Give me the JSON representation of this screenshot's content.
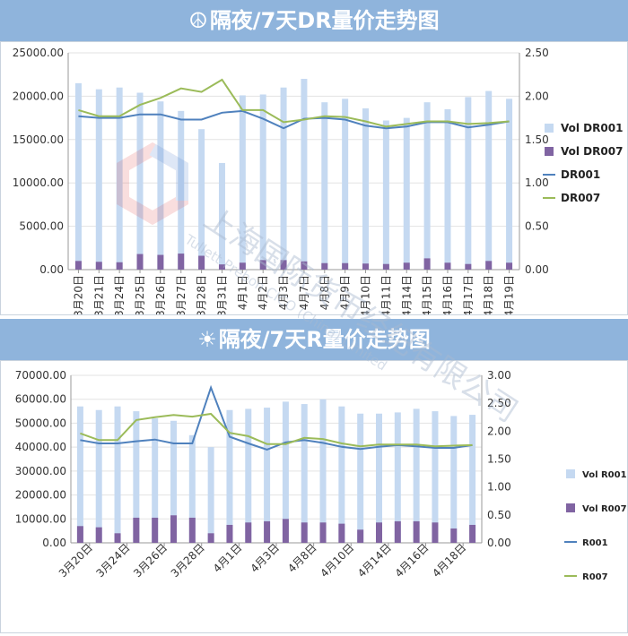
{
  "top": {
    "icon": "☮",
    "title": "隔夜/7天DR量价走势图"
  },
  "bottom": {
    "icon": "☀",
    "title": "隔夜/7天R量价走势图"
  },
  "watermark": {
    "line1": "上海国际货币经纪有限公司",
    "line2": "Tullett Prebon CICO (China) Limited"
  },
  "colors": {
    "vol_main": "#c5d9f1",
    "vol_7d": "#8064a2",
    "line_1d": "#4f81bd",
    "line_7d": "#9bbb59"
  },
  "chart_data": [
    {
      "type": "bar",
      "categories": [
        "3月20日",
        "3月21日",
        "3月24日",
        "3月25日",
        "3月26日",
        "3月27日",
        "3月28日",
        "3月31日",
        "4月1日",
        "4月2日",
        "4月3日",
        "4月7日",
        "4月8日",
        "4月9日",
        "4月10日",
        "4月11日",
        "4月14日",
        "4月15日",
        "4月16日",
        "4月17日",
        "4月18日",
        "4月19日"
      ],
      "y_ticks": [
        "0.00",
        "5000.00",
        "10000.00",
        "15000.00",
        "20000.00",
        "25000.00"
      ],
      "y2_ticks": [
        "0.00",
        "0.50",
        "1.00",
        "1.50",
        "2.00",
        "2.50"
      ],
      "ylim": [
        0,
        25000
      ],
      "y2lim": [
        0,
        2.5
      ],
      "legend_position": "right",
      "series": [
        {
          "name": "Vol DR001",
          "kind": "bar",
          "axis": "left",
          "values": [
            21500,
            20800,
            21000,
            20400,
            19400,
            18300,
            16200,
            12300,
            20100,
            20200,
            21000,
            22000,
            19300,
            19700,
            18600,
            17200,
            17500,
            19300,
            18500,
            19900,
            20600,
            19700
          ]
        },
        {
          "name": "Vol DR007",
          "kind": "bar",
          "axis": "left",
          "values": [
            1000,
            900,
            850,
            1800,
            1700,
            1850,
            1600,
            600,
            800,
            1100,
            1100,
            950,
            750,
            750,
            700,
            650,
            800,
            1300,
            800,
            650,
            1000,
            800
          ]
        },
        {
          "name": "DR001",
          "kind": "line",
          "axis": "right",
          "values": [
            1.77,
            1.75,
            1.75,
            1.79,
            1.79,
            1.73,
            1.73,
            1.81,
            1.83,
            1.74,
            1.63,
            1.74,
            1.75,
            1.73,
            1.66,
            1.63,
            1.65,
            1.7,
            1.7,
            1.64,
            1.67,
            1.71
          ]
        },
        {
          "name": "DR007",
          "kind": "line",
          "axis": "right",
          "values": [
            1.84,
            1.77,
            1.77,
            1.9,
            1.98,
            2.09,
            2.05,
            2.19,
            1.84,
            1.84,
            1.7,
            1.73,
            1.77,
            1.76,
            1.71,
            1.65,
            1.68,
            1.71,
            1.71,
            1.68,
            1.69,
            1.71
          ]
        }
      ]
    },
    {
      "type": "bar",
      "categories": [
        "3月20日",
        "3月21日",
        "3月24日",
        "3月25日",
        "3月26日",
        "3月27日",
        "3月28日",
        "3月31日",
        "4月1日",
        "4月2日",
        "4月3日",
        "4月7日",
        "4月8日",
        "4月9日",
        "4月10日",
        "4月11日",
        "4月14日",
        "4月15日",
        "4月16日",
        "4月17日",
        "4月18日",
        "4月19日"
      ],
      "x_label_every": 2,
      "y_ticks": [
        "0.00",
        "10000.00",
        "20000.00",
        "30000.00",
        "40000.00",
        "50000.00",
        "60000.00",
        "70000.00"
      ],
      "y2_ticks": [
        "0.00",
        "0.50",
        "1.00",
        "1.50",
        "2.00",
        "2.50",
        "3.00"
      ],
      "ylim": [
        0,
        70000
      ],
      "y2lim": [
        0,
        3.0
      ],
      "legend_position": "right",
      "series": [
        {
          "name": "Vol R001",
          "kind": "bar",
          "axis": "left",
          "values": [
            57000,
            55500,
            57000,
            55000,
            52000,
            51000,
            45000,
            40000,
            55500,
            56000,
            56500,
            59000,
            58000,
            60000,
            57000,
            54000,
            54000,
            54500,
            56000,
            55000,
            53000,
            53500
          ]
        },
        {
          "name": "Vol R007",
          "kind": "bar",
          "axis": "left",
          "values": [
            7000,
            6500,
            4000,
            10500,
            10500,
            11500,
            10500,
            4000,
            7500,
            8500,
            9000,
            10000,
            8500,
            8500,
            8000,
            5500,
            8500,
            9000,
            9000,
            8500,
            6000,
            7500
          ]
        },
        {
          "name": "R001",
          "kind": "line",
          "axis": "right",
          "values": [
            1.84,
            1.78,
            1.78,
            1.82,
            1.85,
            1.78,
            1.78,
            2.78,
            1.9,
            1.78,
            1.67,
            1.8,
            1.84,
            1.79,
            1.72,
            1.68,
            1.72,
            1.75,
            1.73,
            1.7,
            1.7,
            1.75
          ]
        },
        {
          "name": "R007",
          "kind": "line",
          "axis": "right",
          "values": [
            1.96,
            1.84,
            1.84,
            2.2,
            2.25,
            2.29,
            2.26,
            2.31,
            1.97,
            1.91,
            1.77,
            1.77,
            1.88,
            1.86,
            1.78,
            1.73,
            1.76,
            1.76,
            1.76,
            1.73,
            1.74,
            1.75
          ]
        }
      ]
    }
  ]
}
